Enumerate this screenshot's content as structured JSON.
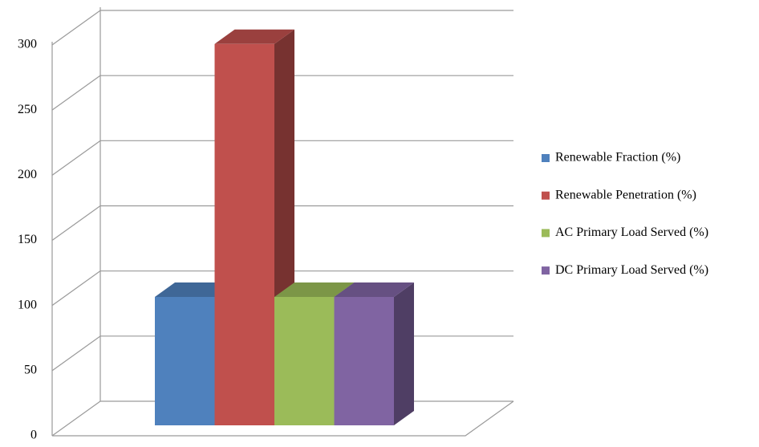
{
  "chart_data": {
    "type": "bar3d",
    "categories": [
      null
    ],
    "series": [
      {
        "name": "Renewable Fraction (%)",
        "color": "#4f81bd",
        "values": [
          100
        ]
      },
      {
        "name": "Renewable Penetration (%)",
        "color": "#c0504d",
        "values": [
          297
        ]
      },
      {
        "name": "AC Primary Load Served (%)",
        "color": "#9bbb59",
        "values": [
          100
        ]
      },
      {
        "name": "DC Primary Load Served (%)",
        "color": "#8064a2",
        "values": [
          100
        ]
      }
    ],
    "ylim": [
      0,
      300
    ],
    "yticks": [
      0,
      50,
      100,
      150,
      200,
      250,
      300
    ],
    "grid": true,
    "legend": "right"
  }
}
